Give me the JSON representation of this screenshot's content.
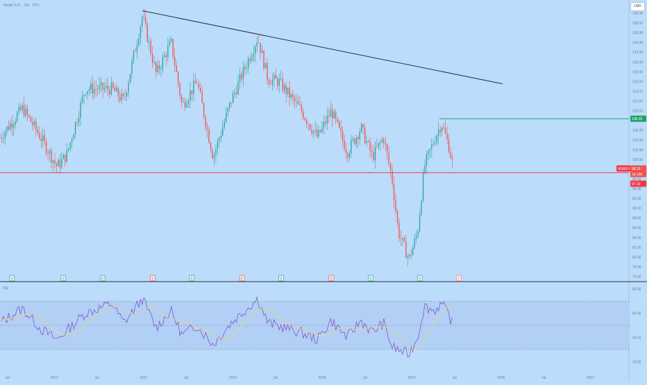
{
  "header": {
    "title": "Nestlé S.A. · 1W · OTC",
    "currency_button": "USD",
    "rsi_label": "RSI"
  },
  "colors": {
    "background": "#bcdcfb",
    "up_candle": "#26a69a",
    "down_candle": "#ef5350",
    "trendline": "#2b2f3a",
    "resistance_line": "#22a06b",
    "support_line": "#f23645",
    "rsi_line": "#7e57c2",
    "rsi_ma": "#f5d76e",
    "rsi_band": "#a9c4f2"
  },
  "price_axis": {
    "ticks": [
      "130.00",
      "128.00",
      "126.00",
      "124.00",
      "122.00",
      "120.00",
      "118.00",
      "116.00",
      "114.00",
      "112.00",
      "110.00",
      "108.00",
      "106.00",
      "104.00",
      "102.00",
      "100.00",
      "98.00",
      "96.00",
      "94.00",
      "92.00",
      "90.00",
      "88.00",
      "86.00",
      "84.00",
      "82.00",
      "80.00",
      "78.00",
      "76.00"
    ],
    "labels": {
      "resistance": "108.35",
      "ticker": "NSRGY",
      "last_price": "98.15",
      "countdown": "2d 19h",
      "support": "97.29"
    }
  },
  "rsi_axis": {
    "ticks": [
      "80.00",
      "60.00",
      "40.00",
      "20.00"
    ]
  },
  "time_axis": {
    "labels": [
      "Jul",
      "2021",
      "Jul",
      "2022",
      "Jul",
      "2023",
      "Jul",
      "2024",
      "Jul",
      "2025",
      "Jul",
      "2026",
      "Jul",
      "2027"
    ]
  },
  "earnings_markers": [
    {
      "label": "E",
      "kind": "beat"
    },
    {
      "label": "E",
      "kind": "beat"
    },
    {
      "label": "E",
      "kind": "beat"
    },
    {
      "label": "E",
      "kind": "miss"
    },
    {
      "label": "E",
      "kind": "beat"
    },
    {
      "label": "E",
      "kind": "miss"
    },
    {
      "label": "E",
      "kind": "beat"
    },
    {
      "label": "E",
      "kind": "miss"
    },
    {
      "label": "E",
      "kind": "beat"
    },
    {
      "label": "E",
      "kind": "beat"
    },
    {
      "label": "E",
      "kind": "upcoming"
    }
  ],
  "chart_data": [
    {
      "type": "candlestick",
      "title": "Nestlé S.A. · 1W · OTC",
      "ylim": [
        75.5,
        131
      ],
      "date_range": [
        "2020-06-01",
        "2027-06-15"
      ],
      "keypoints": [
        {
          "date": "2020-06-01",
          "close": 104.5
        },
        {
          "date": "2020-09-01",
          "close": 110.5
        },
        {
          "date": "2020-11-15",
          "close": 104.5
        },
        {
          "date": "2021-01-20",
          "close": 98.5
        },
        {
          "date": "2021-03-01",
          "close": 101.0
        },
        {
          "date": "2021-05-15",
          "close": 114.5
        },
        {
          "date": "2021-09-01",
          "close": 114.5
        },
        {
          "date": "2021-10-20",
          "close": 112.0
        },
        {
          "date": "2022-01-04",
          "close": 129.5
        },
        {
          "date": "2022-03-01",
          "close": 117.5
        },
        {
          "date": "2022-05-01",
          "close": 124.0
        },
        {
          "date": "2022-06-15",
          "close": 111.0
        },
        {
          "date": "2022-08-15",
          "close": 116.0
        },
        {
          "date": "2022-10-20",
          "close": 100.5
        },
        {
          "date": "2023-01-01",
          "close": 112.0
        },
        {
          "date": "2023-04-20",
          "close": 125.0
        },
        {
          "date": "2023-06-01",
          "close": 116.5
        },
        {
          "date": "2023-07-15",
          "close": 116.0
        },
        {
          "date": "2023-10-15",
          "close": 110.0
        },
        {
          "date": "2023-12-20",
          "close": 104.5
        },
        {
          "date": "2024-02-15",
          "close": 110.0
        },
        {
          "date": "2024-04-20",
          "close": 101.5
        },
        {
          "date": "2024-06-15",
          "close": 106.5
        },
        {
          "date": "2024-08-01",
          "close": 100.5
        },
        {
          "date": "2024-09-15",
          "close": 104.5
        },
        {
          "date": "2024-10-20",
          "close": 96.0
        },
        {
          "date": "2024-11-15",
          "close": 85.0
        },
        {
          "date": "2024-12-28",
          "close": 79.5
        },
        {
          "date": "2025-02-01",
          "close": 85.0
        },
        {
          "date": "2025-03-01",
          "close": 98.5
        },
        {
          "date": "2025-04-10",
          "close": 104.0
        },
        {
          "date": "2025-05-10",
          "close": 107.5
        },
        {
          "date": "2025-06-10",
          "close": 102.5
        },
        {
          "date": "2025-06-28",
          "close": 98.15
        }
      ],
      "annotations": {
        "trendline": [
          {
            "date": "2022-01-04",
            "price": 130.5
          },
          {
            "date": "2026-01-15",
            "price": 115.5
          }
        ],
        "resistance": {
          "price": 108.35,
          "from": "2025-05-01"
        },
        "support": {
          "price": 97.29
        }
      }
    },
    {
      "type": "line",
      "title": "RSI",
      "ylim": [
        15,
        85
      ],
      "bands": [
        70,
        50,
        30
      ],
      "keypoints": [
        {
          "date": "2020-06-01",
          "rsi": 52
        },
        {
          "date": "2020-09-01",
          "rsi": 64
        },
        {
          "date": "2020-11-15",
          "rsi": 47
        },
        {
          "date": "2021-01-20",
          "rsi": 38
        },
        {
          "date": "2021-05-15",
          "rsi": 60
        },
        {
          "date": "2021-09-01",
          "rsi": 68
        },
        {
          "date": "2021-10-20",
          "rsi": 52
        },
        {
          "date": "2022-01-04",
          "rsi": 72
        },
        {
          "date": "2022-03-01",
          "rsi": 48
        },
        {
          "date": "2022-05-01",
          "rsi": 62
        },
        {
          "date": "2022-06-15",
          "rsi": 42
        },
        {
          "date": "2022-08-15",
          "rsi": 50
        },
        {
          "date": "2022-10-20",
          "rsi": 34
        },
        {
          "date": "2023-01-01",
          "rsi": 52
        },
        {
          "date": "2023-04-20",
          "rsi": 72
        },
        {
          "date": "2023-06-01",
          "rsi": 52
        },
        {
          "date": "2023-10-15",
          "rsi": 44
        },
        {
          "date": "2023-12-20",
          "rsi": 38
        },
        {
          "date": "2024-02-15",
          "rsi": 54
        },
        {
          "date": "2024-04-20",
          "rsi": 40
        },
        {
          "date": "2024-06-15",
          "rsi": 54
        },
        {
          "date": "2024-08-01",
          "rsi": 44
        },
        {
          "date": "2024-09-15",
          "rsi": 52
        },
        {
          "date": "2024-10-20",
          "rsi": 32
        },
        {
          "date": "2024-12-28",
          "rsi": 26
        },
        {
          "date": "2025-02-01",
          "rsi": 40
        },
        {
          "date": "2025-03-01",
          "rsi": 66
        },
        {
          "date": "2025-04-10",
          "rsi": 62
        },
        {
          "date": "2025-05-10",
          "rsi": 68
        },
        {
          "date": "2025-06-10",
          "rsi": 58
        },
        {
          "date": "2025-06-28",
          "rsi": 50
        }
      ]
    }
  ]
}
